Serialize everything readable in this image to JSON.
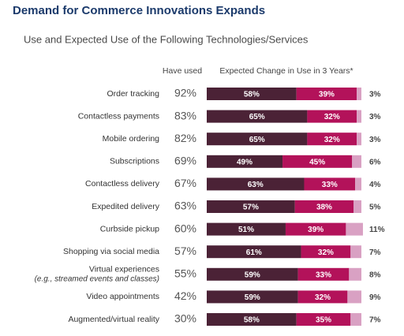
{
  "chart_data": {
    "type": "stacked-bar-horizontal",
    "title": "Demand for Commerce Innovations Expands",
    "subtitle": "Use and Expected Use of the Following Technologies/Services",
    "categories": [
      "Order tracking",
      "Contactless payments",
      "Mobile ordering",
      "Subscriptions",
      "Contactless delivery",
      "Expedited delivery",
      "Curbside pickup",
      "Shopping via social media",
      "Virtual experiences",
      "Video appointments",
      "Augmented/virtual reality"
    ],
    "category_notes": [
      null,
      null,
      null,
      null,
      null,
      null,
      null,
      null,
      "(e.g., streamed events and classes)",
      null,
      null
    ],
    "have_used": {
      "label": "Have used",
      "values": [
        92,
        83,
        82,
        69,
        67,
        63,
        60,
        57,
        55,
        42,
        30
      ],
      "value_labels": [
        "92%",
        "83%",
        "82%",
        "69%",
        "67%",
        "63%",
        "60%",
        "57%",
        "55%",
        "42%",
        "30%"
      ]
    },
    "bars_label": "Expected Change in Use in 3 Years*",
    "xlim": [
      0,
      100
    ],
    "series": [
      {
        "color": "#4b2236",
        "values": [
          58,
          65,
          65,
          49,
          63,
          57,
          51,
          61,
          59,
          59,
          58
        ],
        "value_labels": [
          "58%",
          "65%",
          "65%",
          "49%",
          "63%",
          "57%",
          "51%",
          "61%",
          "59%",
          "59%",
          "58%"
        ]
      },
      {
        "color": "#b3125a",
        "values": [
          39,
          32,
          32,
          45,
          33,
          38,
          39,
          32,
          33,
          32,
          35
        ],
        "value_labels": [
          "39%",
          "32%",
          "32%",
          "45%",
          "33%",
          "38%",
          "39%",
          "32%",
          "33%",
          "32%",
          "35%"
        ]
      },
      {
        "color": "#d9a1c3",
        "values": [
          3,
          3,
          3,
          6,
          4,
          5,
          11,
          7,
          8,
          9,
          7
        ],
        "value_labels": [
          "3%",
          "3%",
          "3%",
          "6%",
          "4%",
          "5%",
          "11%",
          "7%",
          "8%",
          "9%",
          "7%"
        ]
      }
    ]
  }
}
